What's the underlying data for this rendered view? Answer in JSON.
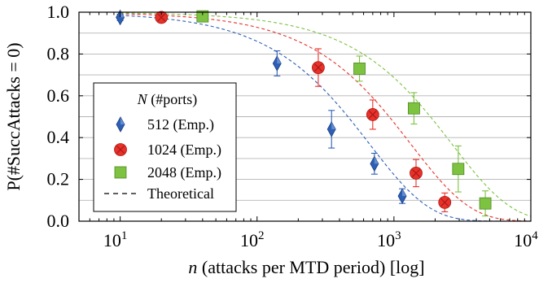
{
  "chart_data": {
    "type": "scatter",
    "xlabel_var": "n",
    "xlabel_rest": " (attacks per MTD period) [log]",
    "ylabel": "P(#SuccAttacks = 0)",
    "x_scale": "log",
    "xlim": [
      5,
      10000
    ],
    "ylim": [
      0,
      1
    ],
    "grid": "horizontal",
    "legend_position": "center-left",
    "legend_title_var": "N",
    "legend_title_rest": " (#ports)",
    "x_ticks": [
      {
        "base": "10",
        "exp": "1",
        "value": 10
      },
      {
        "base": "10",
        "exp": "2",
        "value": 100
      },
      {
        "base": "10",
        "exp": "3",
        "value": 1000
      },
      {
        "base": "10",
        "exp": "4",
        "value": 10000
      }
    ],
    "y_ticks": [
      {
        "label": "0.0",
        "value": 0.0
      },
      {
        "label": "0.2",
        "value": 0.2
      },
      {
        "label": "0.4",
        "value": 0.4
      },
      {
        "label": "0.6",
        "value": 0.6
      },
      {
        "label": "0.8",
        "value": 0.8
      },
      {
        "label": "1.0",
        "value": 1.0
      }
    ],
    "series": [
      {
        "name": "512 (Emp.)",
        "marker": "diamond",
        "color": "#2d5fb5",
        "ports": 512,
        "points": [
          {
            "x": 10,
            "y": 0.975,
            "err": 0.015
          },
          {
            "x": 140,
            "y": 0.755,
            "err": 0.06
          },
          {
            "x": 350,
            "y": 0.44,
            "err": 0.09
          },
          {
            "x": 720,
            "y": 0.275,
            "err": 0.05
          },
          {
            "x": 1150,
            "y": 0.12,
            "err": 0.035
          }
        ]
      },
      {
        "name": "1024 (Emp.)",
        "marker": "circle",
        "color": "#e8312a",
        "ports": 1024,
        "points": [
          {
            "x": 20,
            "y": 0.975,
            "err": 0.01
          },
          {
            "x": 280,
            "y": 0.735,
            "err": 0.09
          },
          {
            "x": 700,
            "y": 0.51,
            "err": 0.07
          },
          {
            "x": 1450,
            "y": 0.23,
            "err": 0.065
          },
          {
            "x": 2350,
            "y": 0.09,
            "err": 0.045
          }
        ]
      },
      {
        "name": "2048 (Emp.)",
        "marker": "square",
        "color": "#7dc241",
        "ports": 2048,
        "points": [
          {
            "x": 40,
            "y": 0.98,
            "err": 0.01
          },
          {
            "x": 560,
            "y": 0.73,
            "err": 0.06
          },
          {
            "x": 1400,
            "y": 0.54,
            "err": 0.075
          },
          {
            "x": 2950,
            "y": 0.25,
            "err": 0.11
          },
          {
            "x": 4650,
            "y": 0.085,
            "err": 0.06
          }
        ]
      }
    ],
    "theoretical": {
      "name": "Theoretical",
      "style": "dashed"
    }
  }
}
